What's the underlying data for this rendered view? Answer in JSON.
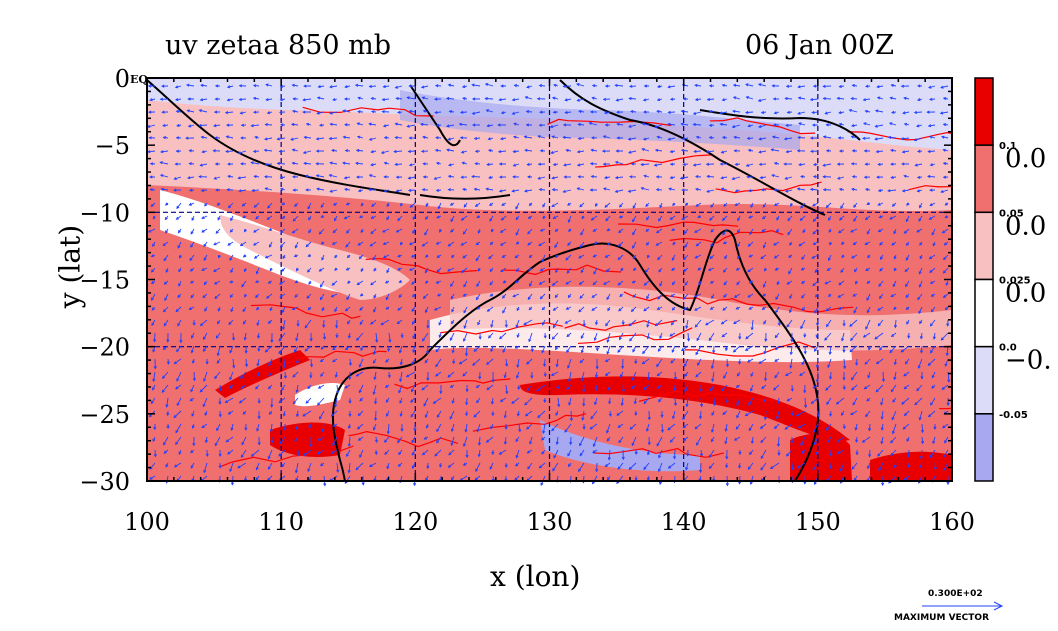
{
  "header": {
    "title_left": "uv zetaa 850 mb",
    "title_right": "06 Jan 00Z"
  },
  "axes": {
    "xlabel": "x (lon)",
    "ylabel": "y (lat)",
    "x_ticks": [
      "100",
      "110",
      "120",
      "130",
      "140",
      "150",
      "160"
    ],
    "y_ticks": [
      "0",
      "−5",
      "−10",
      "−15",
      "−20",
      "−25",
      "−30"
    ],
    "y_top_suffix": "EQ",
    "x_range": [
      100,
      160
    ],
    "y_range": [
      -30,
      0
    ]
  },
  "colorbar": {
    "small_labels": [
      "0.1",
      "0.05",
      "0.025",
      "0.0",
      "-0.05"
    ],
    "large_labels": [
      "0.0",
      "0.0",
      "0.0",
      "−0."
    ],
    "colors": [
      "#e80000",
      "#f07070",
      "#f8c0c0",
      "#ffffff",
      "#dcdcf8",
      "#a8a8f0"
    ]
  },
  "vector_key": {
    "value": "0.300E+02",
    "label": "MAXIMUM VECTOR"
  },
  "colors": {
    "vector": "#2040ff",
    "contour": "#ff0000",
    "coast": "#000000",
    "grid": "#000080"
  }
}
